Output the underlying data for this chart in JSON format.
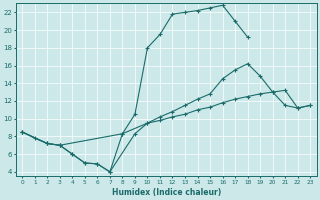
{
  "xlabel": "Humidex (Indice chaleur)",
  "xlim": [
    -0.5,
    23.5
  ],
  "ylim": [
    3.5,
    23
  ],
  "yticks": [
    4,
    6,
    8,
    10,
    12,
    14,
    16,
    18,
    20,
    22
  ],
  "xticks": [
    0,
    1,
    2,
    3,
    4,
    5,
    6,
    7,
    8,
    9,
    10,
    11,
    12,
    13,
    14,
    15,
    16,
    17,
    18,
    19,
    20,
    21,
    22,
    23
  ],
  "xtick_labels": [
    "0",
    "1",
    "2",
    "3",
    "4",
    "5",
    "6",
    "7",
    "8",
    "9",
    "10",
    "11",
    "12",
    "13",
    "14",
    "15",
    "16",
    "17",
    "18",
    "19",
    "20",
    "21",
    "22",
    "23"
  ],
  "bg_color": "#cde8e8",
  "line_color": "#1a6b6b",
  "line1_x": [
    0,
    1,
    2,
    3,
    4,
    5,
    6,
    7,
    8,
    9,
    10,
    11,
    12,
    13,
    14,
    15,
    16,
    17,
    18
  ],
  "line1_y": [
    8.5,
    7.8,
    7.2,
    7.0,
    6.0,
    5.0,
    4.9,
    4.0,
    8.3,
    10.5,
    18.0,
    19.5,
    21.8,
    22.0,
    22.2,
    22.5,
    22.8,
    21.0,
    19.2
  ],
  "line2_x": [
    0,
    2,
    3,
    4,
    5,
    6,
    7,
    9,
    10,
    11,
    12,
    13,
    14,
    15,
    16,
    17,
    18,
    19,
    20,
    21,
    22,
    23
  ],
  "line2_y": [
    8.5,
    7.2,
    7.0,
    6.0,
    5.0,
    4.9,
    4.0,
    8.3,
    9.5,
    10.2,
    10.8,
    11.5,
    12.2,
    12.8,
    14.5,
    15.5,
    16.2,
    14.8,
    13.0,
    11.5,
    11.2,
    11.5
  ],
  "line3_x": [
    0,
    2,
    3,
    8,
    10,
    11,
    12,
    13,
    14,
    15,
    16,
    17,
    18,
    19,
    20,
    21,
    22,
    23
  ],
  "line3_y": [
    8.5,
    7.2,
    7.0,
    8.3,
    9.5,
    9.8,
    10.2,
    10.5,
    11.0,
    11.3,
    11.8,
    12.2,
    12.5,
    12.8,
    13.0,
    13.2,
    11.2,
    11.5
  ]
}
